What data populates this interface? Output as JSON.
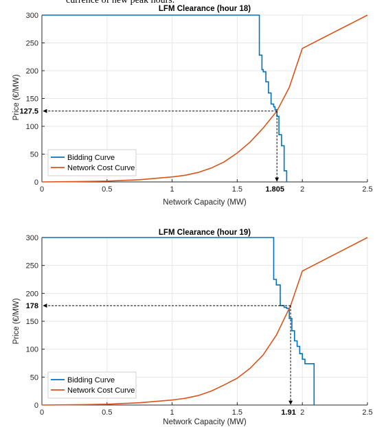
{
  "caption_fragment": "currence of new peak hours.",
  "colors": {
    "bidding": "#0072BD",
    "network": "#D95319",
    "grid": "#e6e6e6",
    "axis": "#262626"
  },
  "chart_data": [
    {
      "type": "line",
      "title": "LFM Clearance (hour 18)",
      "xlabel": "Network Capacity (MW)",
      "ylabel": "Price (€/MW)",
      "xlim": [
        0,
        2.5
      ],
      "ylim": [
        0,
        300
      ],
      "xticks": [
        0,
        0.5,
        1,
        1.5,
        2,
        2.5
      ],
      "xtick_labels": [
        "0",
        "0.5",
        "1",
        "1.5",
        "2",
        "2.5"
      ],
      "yticks": [
        0,
        50,
        100,
        150,
        200,
        250,
        300
      ],
      "ytick_labels": [
        "0",
        "50",
        "100",
        "150",
        "200",
        "250",
        "300"
      ],
      "grid": true,
      "legend": "bottom-left",
      "series": [
        {
          "name": "Bidding Curve",
          "step": true,
          "x": [
            0,
            1.67,
            1.67,
            1.69,
            1.69,
            1.7,
            1.7,
            1.72,
            1.72,
            1.74,
            1.74,
            1.76,
            1.76,
            1.78,
            1.78,
            1.79,
            1.79,
            1.805,
            1.805,
            1.82,
            1.82,
            1.84,
            1.84,
            1.86,
            1.86,
            1.88,
            1.88
          ],
          "y": [
            300,
            300,
            228,
            228,
            202,
            202,
            198,
            198,
            180,
            180,
            160,
            160,
            140,
            140,
            135,
            135,
            130,
            130,
            118,
            118,
            85,
            85,
            65,
            65,
            20,
            20,
            0
          ]
        },
        {
          "name": "Network Cost Curve",
          "x": [
            0,
            0.25,
            0.5,
            0.75,
            1.0,
            1.1,
            1.2,
            1.3,
            1.4,
            1.5,
            1.6,
            1.7,
            1.805,
            1.9,
            2.0,
            2.5
          ],
          "y": [
            0,
            0.5,
            1.5,
            4,
            9,
            12,
            17,
            25,
            36,
            52,
            72,
            97,
            127.5,
            170,
            240,
            300
          ]
        }
      ],
      "annotations": [
        {
          "x": 1.805,
          "y": 127.5,
          "y_label": "127.5",
          "x_label": "1.805"
        }
      ]
    },
    {
      "type": "line",
      "title": "LFM Clearance (hour 19)",
      "xlabel": "Network Capacity (MW)",
      "ylabel": "Price (€/MW)",
      "xlim": [
        0,
        2.5
      ],
      "ylim": [
        0,
        300
      ],
      "xticks": [
        0,
        0.5,
        1,
        1.5,
        2,
        2.5
      ],
      "xtick_labels": [
        "0",
        "0.5",
        "1",
        "1.5",
        "2",
        "2.5"
      ],
      "yticks": [
        0,
        50,
        100,
        150,
        200,
        250,
        300
      ],
      "ytick_labels": [
        "0",
        "50",
        "100",
        "150",
        "200",
        "250",
        "300"
      ],
      "grid": true,
      "legend": "bottom-left",
      "series": [
        {
          "name": "Bidding Curve",
          "step": true,
          "x": [
            0,
            1.78,
            1.78,
            1.8,
            1.8,
            1.83,
            1.83,
            1.86,
            1.86,
            1.88,
            1.88,
            1.9,
            1.9,
            1.92,
            1.92,
            1.94,
            1.94,
            1.96,
            1.96,
            1.98,
            1.98,
            2.0,
            2.0,
            2.02,
            2.02,
            2.04,
            2.04,
            2.06,
            2.06,
            2.09,
            2.09
          ],
          "y": [
            300,
            300,
            225,
            225,
            215,
            215,
            178,
            178,
            175,
            175,
            173,
            173,
            155,
            155,
            133,
            133,
            115,
            115,
            105,
            105,
            92,
            92,
            82,
            82,
            74,
            74,
            74,
            74,
            74,
            74,
            0
          ]
        },
        {
          "name": "Network Cost Curve",
          "x": [
            0,
            0.25,
            0.5,
            0.75,
            1.0,
            1.1,
            1.2,
            1.3,
            1.4,
            1.5,
            1.6,
            1.7,
            1.8,
            1.91,
            2.0,
            2.5
          ],
          "y": [
            0,
            0.5,
            1.5,
            4,
            9,
            12,
            17,
            25,
            36,
            48,
            66,
            90,
            125,
            178,
            240,
            300
          ]
        }
      ],
      "annotations": [
        {
          "x": 1.91,
          "y": 178,
          "y_label": "178",
          "x_label": "1.91"
        }
      ]
    }
  ]
}
